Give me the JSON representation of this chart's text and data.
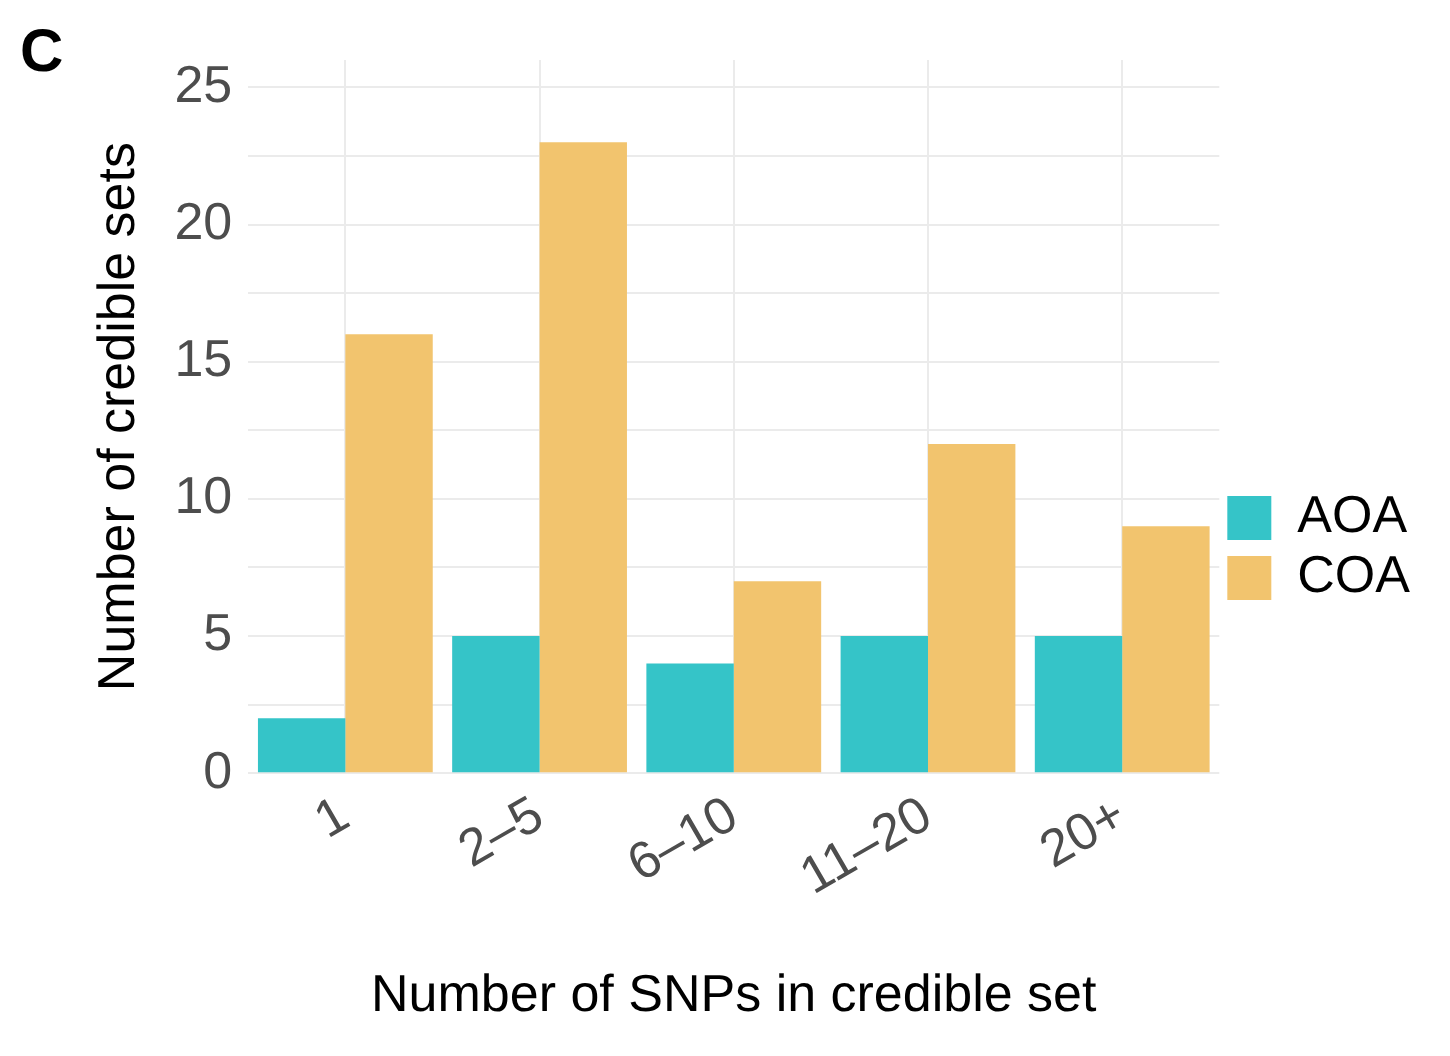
{
  "chart_data": {
    "type": "bar",
    "xlabel": "Number of SNPs in credible set",
    "ylabel": "Number of credible sets",
    "categories": [
      "1",
      "2–5",
      "6–10",
      "11–20",
      "20+"
    ],
    "series": [
      {
        "name": "AOA",
        "color": "#35c4c8",
        "values": [
          2,
          5,
          4,
          5,
          5
        ]
      },
      {
        "name": "COA",
        "color": "#f2c46e",
        "values": [
          16,
          23,
          7,
          12,
          9
        ]
      }
    ],
    "ylim": [
      0,
      26
    ],
    "yticks": [
      0,
      {
        "value": 2.5,
        "label": null
      },
      5,
      {
        "value": 7.5,
        "label": null
      },
      10,
      {
        "value": 12.5,
        "label": null
      },
      15,
      {
        "value": 17.5,
        "label": null
      },
      20,
      {
        "value": 22.5,
        "label": null
      },
      25
    ],
    "grid": true,
    "legend": "right",
    "annotations": [
      "C"
    ]
  }
}
